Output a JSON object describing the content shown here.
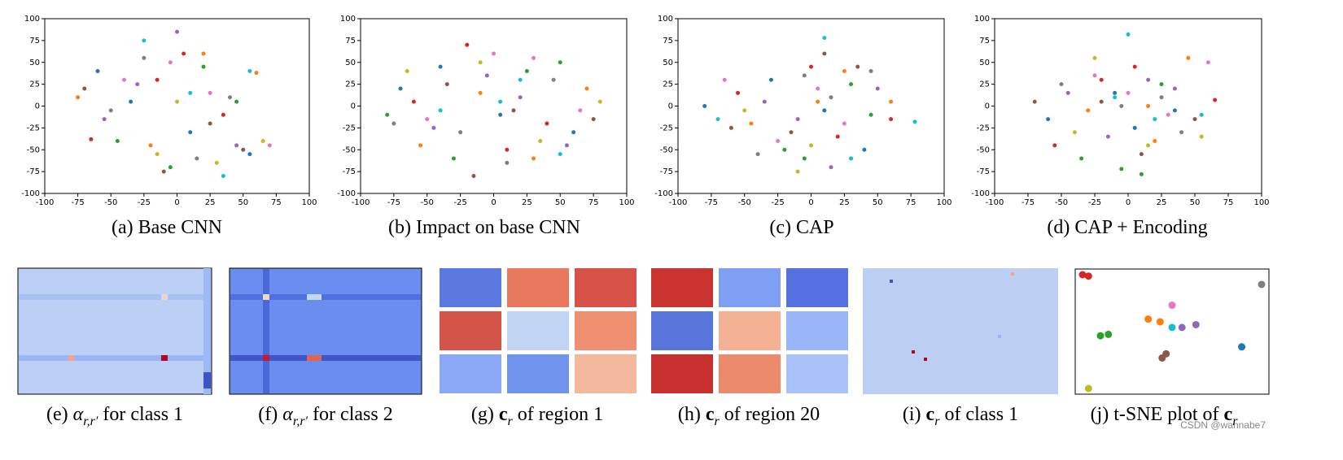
{
  "chart_data": [
    {
      "type": "scatter",
      "caption": "(a) Base CNN",
      "xlim": [
        -100,
        100
      ],
      "ylim": [
        -100,
        100
      ],
      "xticks": [
        -100,
        -75,
        -50,
        -25,
        0,
        25,
        50,
        75,
        100
      ],
      "yticks": [
        -100,
        -75,
        -50,
        -25,
        0,
        25,
        50,
        75,
        100
      ],
      "series": [
        {
          "color": "#1f77b4",
          "x": [
            -60,
            10,
            55,
            -35
          ],
          "y": [
            40,
            -30,
            -55,
            5
          ]
        },
        {
          "color": "#ff7f0e",
          "x": [
            -75,
            -20,
            60,
            20
          ],
          "y": [
            10,
            -45,
            38,
            60
          ]
        },
        {
          "color": "#2ca02c",
          "x": [
            -45,
            20,
            -5,
            45
          ],
          "y": [
            -40,
            45,
            -70,
            5
          ]
        },
        {
          "color": "#d62728",
          "x": [
            -65,
            35,
            5,
            -15
          ],
          "y": [
            -38,
            -10,
            60,
            30
          ]
        },
        {
          "color": "#9467bd",
          "x": [
            -30,
            -55,
            45,
            0
          ],
          "y": [
            25,
            -15,
            -45,
            85
          ]
        },
        {
          "color": "#8c564b",
          "x": [
            -10,
            50,
            -70,
            25
          ],
          "y": [
            -75,
            -50,
            20,
            -20
          ]
        },
        {
          "color": "#e377c2",
          "x": [
            25,
            -40,
            70,
            -5
          ],
          "y": [
            15,
            30,
            -45,
            50
          ]
        },
        {
          "color": "#7f7f7f",
          "x": [
            -50,
            15,
            40,
            -25
          ],
          "y": [
            -5,
            -60,
            10,
            55
          ]
        },
        {
          "color": "#bcbd22",
          "x": [
            -15,
            0,
            65,
            30
          ],
          "y": [
            -55,
            5,
            -40,
            -65
          ]
        },
        {
          "color": "#17becf",
          "x": [
            35,
            -25,
            10,
            55
          ],
          "y": [
            -80,
            75,
            15,
            40
          ]
        }
      ]
    },
    {
      "type": "scatter",
      "caption": "(b) Impact on base CNN",
      "xlim": [
        -100,
        100
      ],
      "ylim": [
        -100,
        100
      ],
      "xticks": [
        -100,
        -75,
        -50,
        -25,
        0,
        25,
        50,
        75,
        100
      ],
      "yticks": [
        -100,
        -75,
        -50,
        -25,
        0,
        25,
        50,
        75,
        100
      ],
      "series": [
        {
          "color": "#1f77b4",
          "x": [
            -70,
            5,
            60,
            -40
          ],
          "y": [
            20,
            -10,
            -30,
            45
          ]
        },
        {
          "color": "#ff7f0e",
          "x": [
            -55,
            -10,
            70,
            30
          ],
          "y": [
            -45,
            15,
            20,
            -60
          ]
        },
        {
          "color": "#2ca02c",
          "x": [
            -30,
            25,
            -80,
            50
          ],
          "y": [
            -60,
            40,
            -10,
            50
          ]
        },
        {
          "color": "#d62728",
          "x": [
            -20,
            40,
            10,
            -60
          ],
          "y": [
            70,
            -20,
            -50,
            5
          ]
        },
        {
          "color": "#9467bd",
          "x": [
            -5,
            55,
            -45,
            20
          ],
          "y": [
            35,
            -45,
            -25,
            10
          ]
        },
        {
          "color": "#8c564b",
          "x": [
            15,
            -35,
            75,
            -15
          ],
          "y": [
            -5,
            25,
            -15,
            -80
          ]
        },
        {
          "color": "#e377c2",
          "x": [
            -50,
            30,
            0,
            65
          ],
          "y": [
            -15,
            55,
            60,
            -5
          ]
        },
        {
          "color": "#7f7f7f",
          "x": [
            -25,
            10,
            45,
            -75
          ],
          "y": [
            -30,
            -65,
            30,
            -20
          ]
        },
        {
          "color": "#bcbd22",
          "x": [
            -10,
            35,
            -65,
            80
          ],
          "y": [
            50,
            -40,
            40,
            5
          ]
        },
        {
          "color": "#17becf",
          "x": [
            5,
            -40,
            50,
            20
          ],
          "y": [
            5,
            -5,
            -55,
            30
          ]
        }
      ]
    },
    {
      "type": "scatter",
      "caption": "(c) CAP",
      "xlim": [
        -100,
        100
      ],
      "ylim": [
        -100,
        100
      ],
      "xticks": [
        -100,
        -75,
        -50,
        -25,
        0,
        25,
        50,
        75,
        100
      ],
      "yticks": [
        -100,
        -75,
        -50,
        -25,
        0,
        25,
        50,
        75,
        100
      ],
      "series": [
        {
          "color": "#1f77b4",
          "x": [
            -80,
            10,
            40,
            -30
          ],
          "y": [
            0,
            -5,
            -50,
            30
          ]
        },
        {
          "color": "#ff7f0e",
          "x": [
            -45,
            5,
            60,
            25
          ],
          "y": [
            -20,
            5,
            5,
            40
          ]
        },
        {
          "color": "#2ca02c",
          "x": [
            -20,
            30,
            -5,
            45
          ],
          "y": [
            -50,
            25,
            -60,
            -10
          ]
        },
        {
          "color": "#d62728",
          "x": [
            -55,
            20,
            0,
            60
          ],
          "y": [
            15,
            -35,
            45,
            -15
          ]
        },
        {
          "color": "#9467bd",
          "x": [
            -35,
            50,
            -10,
            15
          ],
          "y": [
            5,
            20,
            -15,
            -70
          ]
        },
        {
          "color": "#8c564b",
          "x": [
            -15,
            35,
            -60,
            10
          ],
          "y": [
            -30,
            45,
            -25,
            60
          ]
        },
        {
          "color": "#e377c2",
          "x": [
            -65,
            25,
            5,
            -25
          ],
          "y": [
            30,
            -20,
            20,
            -40
          ]
        },
        {
          "color": "#7f7f7f",
          "x": [
            -40,
            15,
            45,
            -5
          ],
          "y": [
            -55,
            10,
            40,
            35
          ]
        },
        {
          "color": "#bcbd22",
          "x": [
            -10,
            0,
            30,
            -50
          ],
          "y": [
            -75,
            -45,
            -60,
            -5
          ]
        },
        {
          "color": "#17becf",
          "x": [
            78,
            -70,
            10,
            30
          ],
          "y": [
            -18,
            -15,
            78,
            -60
          ]
        }
      ]
    },
    {
      "type": "scatter",
      "caption": "(d) CAP + Encoding",
      "xlim": [
        -100,
        100
      ],
      "ylim": [
        -100,
        100
      ],
      "xticks": [
        -100,
        -75,
        -50,
        -25,
        0,
        25,
        50,
        75,
        100
      ],
      "yticks": [
        -100,
        -75,
        -50,
        -25,
        0,
        25,
        50,
        75,
        100
      ],
      "series": [
        {
          "color": "#1f77b4",
          "x": [
            -60,
            5,
            35,
            -10
          ],
          "y": [
            -15,
            -25,
            -5,
            15
          ]
        },
        {
          "color": "#ff7f0e",
          "x": [
            -30,
            15,
            45,
            20
          ],
          "y": [
            -5,
            0,
            55,
            -40
          ]
        },
        {
          "color": "#2ca02c",
          "x": [
            -35,
            25,
            -5,
            10
          ],
          "y": [
            -60,
            25,
            -72,
            -78
          ]
        },
        {
          "color": "#d62728",
          "x": [
            -55,
            5,
            65,
            -20
          ],
          "y": [
            -45,
            45,
            7,
            30
          ]
        },
        {
          "color": "#9467bd",
          "x": [
            -45,
            35,
            -15,
            15
          ],
          "y": [
            15,
            20,
            -35,
            30
          ]
        },
        {
          "color": "#8c564b",
          "x": [
            -20,
            50,
            -70,
            10
          ],
          "y": [
            5,
            -15,
            5,
            -55
          ]
        },
        {
          "color": "#e377c2",
          "x": [
            -25,
            30,
            0,
            60
          ],
          "y": [
            35,
            -10,
            15,
            50
          ]
        },
        {
          "color": "#7f7f7f",
          "x": [
            -5,
            40,
            -50,
            25
          ],
          "y": [
            0,
            -30,
            25,
            10
          ]
        },
        {
          "color": "#bcbd22",
          "x": [
            -40,
            15,
            55,
            -25
          ],
          "y": [
            -30,
            -45,
            -35,
            55
          ]
        },
        {
          "color": "#17becf",
          "x": [
            0,
            55,
            20,
            -10
          ],
          "y": [
            82,
            -10,
            -15,
            10
          ]
        }
      ]
    },
    {
      "type": "scatter",
      "series": [
        {
          "color": "#d62728",
          "x": [
            5,
            8
          ],
          "y": [
            90,
            89
          ]
        },
        {
          "color": "#7f7f7f",
          "x": [
            95
          ],
          "y": [
            83
          ]
        },
        {
          "color": "#ff7f0e",
          "x": [
            38,
            44
          ],
          "y": [
            58,
            56
          ]
        },
        {
          "color": "#e377c2",
          "x": [
            50
          ],
          "y": [
            68
          ]
        },
        {
          "color": "#9467bd",
          "x": [
            55,
            62
          ],
          "y": [
            52,
            54
          ]
        },
        {
          "color": "#8c564b",
          "x": [
            47,
            45
          ],
          "y": [
            33,
            30
          ]
        },
        {
          "color": "#2ca02c",
          "x": [
            14,
            18
          ],
          "y": [
            46,
            47
          ]
        },
        {
          "color": "#17becf",
          "x": [
            50
          ],
          "y": [
            52
          ]
        },
        {
          "color": "#1f77b4",
          "x": [
            85
          ],
          "y": [
            38
          ]
        },
        {
          "color": "#bcbd22",
          "x": [
            8
          ],
          "y": [
            8
          ]
        }
      ]
    }
  ],
  "captions": [
    {
      "label": "(e)",
      "math": "α",
      "sub": "r,r′",
      "text": "for class 1"
    },
    {
      "label": "(f)",
      "math": "α",
      "sub": "r,r′",
      "text": "for class 2"
    },
    {
      "label": "(g)",
      "math": "c",
      "sub": "r",
      "text": "of region 1"
    },
    {
      "label": "(h)",
      "math": "c",
      "sub": "r",
      "text": "of region 20"
    },
    {
      "label": "(i)",
      "math": "c",
      "sub": "r",
      "text": "of class 1"
    },
    {
      "label": "(j) t-SNE plot of",
      "math": "c",
      "sub": "r",
      "text": ""
    }
  ],
  "watermark": "CSDN @wannabe7"
}
